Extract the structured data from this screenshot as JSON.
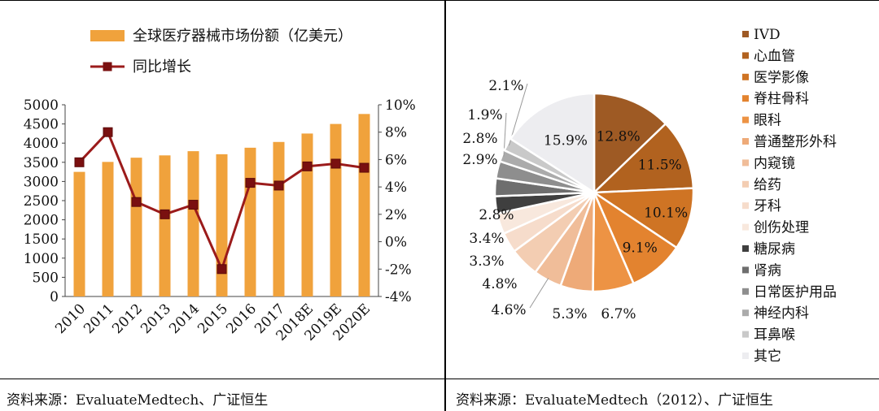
{
  "chart_data": [
    {
      "type": "bar+line",
      "categories": [
        "2010",
        "2011",
        "2012",
        "2013",
        "2014",
        "2015",
        "2016",
        "2017",
        "2018E",
        "2019E",
        "2020E"
      ],
      "series": [
        {
          "name": "全球医疗器械市场份额（亿美元）",
          "type": "bar",
          "axis": "left",
          "color": "#F0A23C",
          "values": [
            3250,
            3510,
            3620,
            3680,
            3790,
            3710,
            3880,
            4030,
            4250,
            4500,
            4760
          ]
        },
        {
          "name": "同比增长",
          "type": "line",
          "axis": "right",
          "color": "#9B1B1B",
          "marker_color": "#7A1010",
          "values": [
            5.8,
            8.0,
            2.9,
            2.0,
            2.7,
            -2.0,
            4.3,
            4.1,
            5.5,
            5.7,
            5.4
          ]
        }
      ],
      "ylim": [
        0,
        5000
      ],
      "y_ticks": [
        "5000",
        "4500",
        "4000",
        "3500",
        "3000",
        "2500",
        "2000",
        "1500",
        "1000",
        "500",
        "0"
      ],
      "y2lim": [
        -4,
        10
      ],
      "y2_ticks": [
        "10%",
        "8%",
        "6%",
        "4%",
        "2%",
        "0%",
        "-2%",
        "-4%"
      ],
      "legend_position": "top-left",
      "grid": false
    },
    {
      "type": "pie",
      "slices": [
        {
          "label": "IVD",
          "value": 12.8,
          "display": "12.8%",
          "color": "#9E5A24"
        },
        {
          "label": "心血管",
          "value": 11.5,
          "display": "11.5%",
          "color": "#B1621F"
        },
        {
          "label": "医学影像",
          "value": 10.1,
          "display": "10.1%",
          "color": "#CF7424"
        },
        {
          "label": "脊柱骨科",
          "value": 9.1,
          "display": "9.1%",
          "color": "#E3832F"
        },
        {
          "label": "眼科",
          "value": 6.7,
          "display": "6.7%",
          "color": "#ED9344"
        },
        {
          "label": "普通整形外科",
          "value": 5.3,
          "display": "5.3%",
          "color": "#EEAA78"
        },
        {
          "label": "内窥镜",
          "value": 4.6,
          "display": "4.6%",
          "color": "#F0BD99"
        },
        {
          "label": "给药",
          "value": 4.8,
          "display": "4.8%",
          "color": "#F3CDB2"
        },
        {
          "label": "牙科",
          "value": 3.3,
          "display": "3.3%",
          "color": "#F6DCCB"
        },
        {
          "label": "创伤处理",
          "value": 3.4,
          "display": "3.4%",
          "color": "#F8E8DD"
        },
        {
          "label": "糖尿病",
          "value": 2.8,
          "display": "2.8%",
          "color": "#3F3F3F"
        },
        {
          "label": "肾病",
          "value": 2.9,
          "display": "2.9%",
          "color": "#6E6E6E"
        },
        {
          "label": "日常医护用品",
          "value": 2.8,
          "display": "2.8%",
          "color": "#8E8E8E"
        },
        {
          "label": "神经内科",
          "value": 1.9,
          "display": "1.9%",
          "color": "#ABABAB"
        },
        {
          "label": "耳鼻喉",
          "value": 2.1,
          "display": "2.1%",
          "color": "#C9C9C9"
        },
        {
          "label": "其它",
          "value": 15.9,
          "display": "15.9%",
          "color": "#EDEDF0"
        }
      ],
      "legend_position": "right"
    }
  ],
  "footer": {
    "left_source": "资料来源：EvaluateMedtech、广证恒生",
    "right_source": "资料来源：EvaluateMedtech（2012）、广证恒生"
  }
}
